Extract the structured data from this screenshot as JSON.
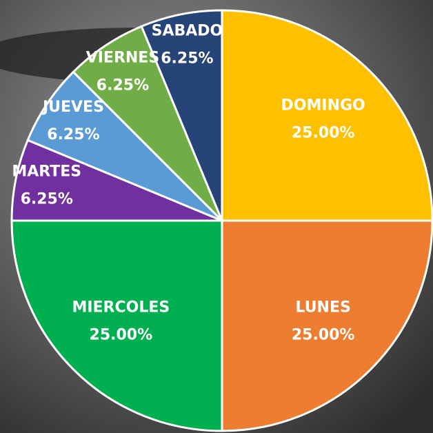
{
  "chart_data": {
    "type": "pie",
    "categories": [
      "DOMINGO",
      "LUNES",
      "MIERCOLES",
      "MARTES",
      "JUEVES",
      "VIERNES",
      "SABADO"
    ],
    "values": [
      25,
      25,
      25,
      6.25,
      6.25,
      6.25,
      6.25
    ],
    "value_labels": [
      "25.00%",
      "25.00%",
      "25.00%",
      "6.25%",
      "6.25%",
      "6.25%",
      "6.25%"
    ],
    "colors": [
      "#ffc000",
      "#ed7d31",
      "#00b050",
      "#7030a0",
      "#5b9bd5",
      "#70ad47",
      "#264478"
    ]
  }
}
